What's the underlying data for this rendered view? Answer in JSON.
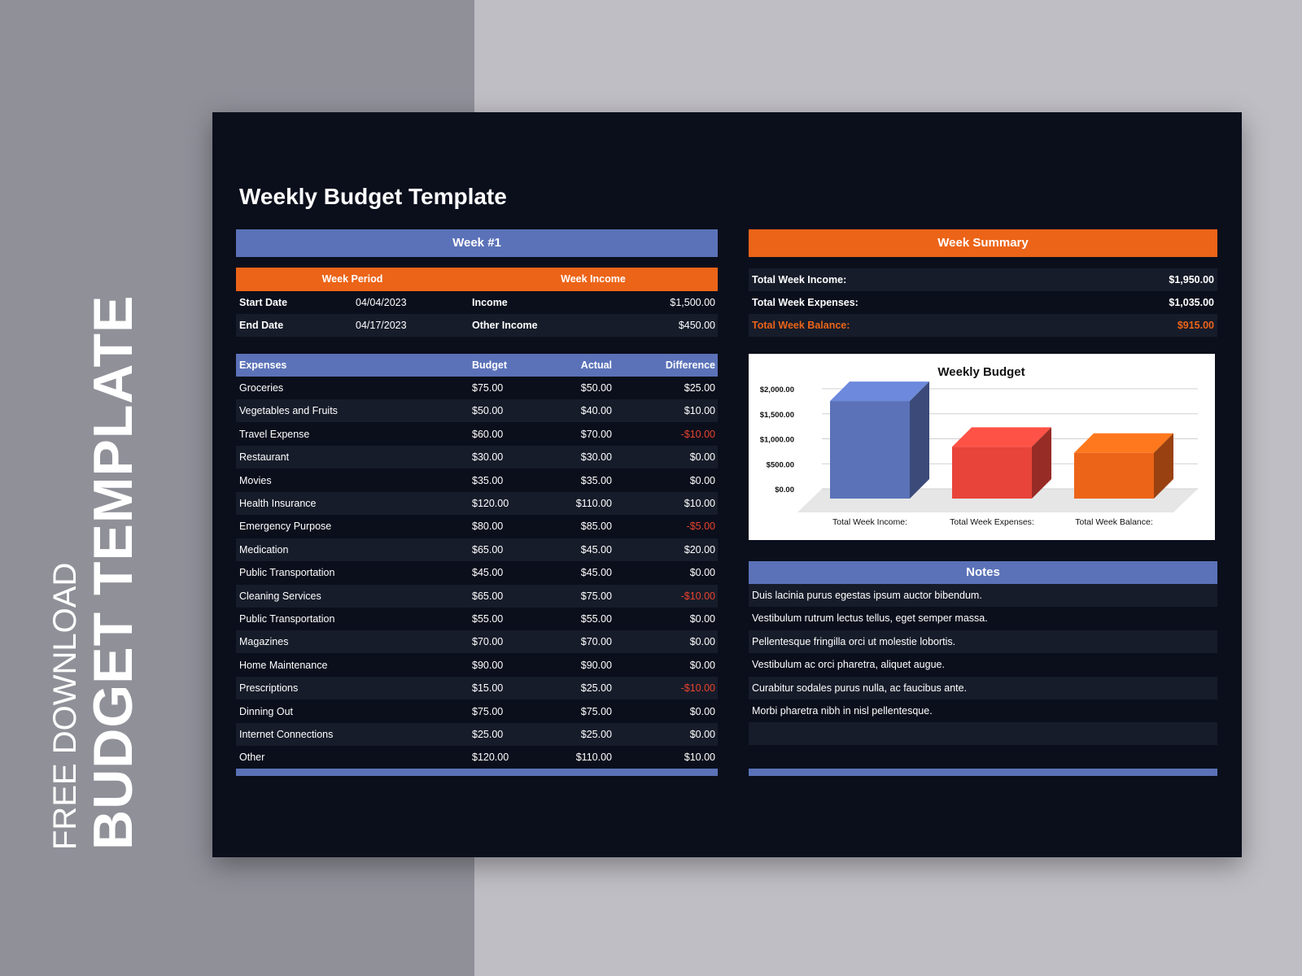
{
  "side": {
    "free_download": "FREE DOWNLOAD",
    "budget_template": "BUDGET TEMPLATE"
  },
  "title": "Weekly Budget Template",
  "week": {
    "header": "Week #1",
    "period_label": "Week Period",
    "income_label": "Week Income",
    "start_label": "Start Date",
    "start_value": "04/04/2023",
    "end_label": "End Date",
    "end_value": "04/17/2023",
    "income_row_label": "Income",
    "income_value": "$1,500.00",
    "other_income_label": "Other Income",
    "other_income_value": "$450.00"
  },
  "expenses": {
    "columns": [
      "Expenses",
      "Budget",
      "Actual",
      "Difference"
    ],
    "rows": [
      {
        "name": "Groceries",
        "budget": "$75.00",
        "actual": "$50.00",
        "diff": "$25.00",
        "neg": false
      },
      {
        "name": "Vegetables and Fruits",
        "budget": "$50.00",
        "actual": "$40.00",
        "diff": "$10.00",
        "neg": false
      },
      {
        "name": "Travel Expense",
        "budget": "$60.00",
        "actual": "$70.00",
        "diff": "-$10.00",
        "neg": true
      },
      {
        "name": "Restaurant",
        "budget": "$30.00",
        "actual": "$30.00",
        "diff": "$0.00",
        "neg": false
      },
      {
        "name": "Movies",
        "budget": "$35.00",
        "actual": "$35.00",
        "diff": "$0.00",
        "neg": false
      },
      {
        "name": "Health Insurance",
        "budget": "$120.00",
        "actual": "$110.00",
        "diff": "$10.00",
        "neg": false
      },
      {
        "name": "Emergency Purpose",
        "budget": "$80.00",
        "actual": "$85.00",
        "diff": "-$5.00",
        "neg": true
      },
      {
        "name": "Medication",
        "budget": "$65.00",
        "actual": "$45.00",
        "diff": "$20.00",
        "neg": false
      },
      {
        "name": "Public Transportation",
        "budget": "$45.00",
        "actual": "$45.00",
        "diff": "$0.00",
        "neg": false
      },
      {
        "name": "Cleaning Services",
        "budget": "$65.00",
        "actual": "$75.00",
        "diff": "-$10.00",
        "neg": true
      },
      {
        "name": "Public Transportation",
        "budget": "$55.00",
        "actual": "$55.00",
        "diff": "$0.00",
        "neg": false
      },
      {
        "name": "Magazines",
        "budget": "$70.00",
        "actual": "$70.00",
        "diff": "$0.00",
        "neg": false
      },
      {
        "name": "Home Maintenance",
        "budget": "$90.00",
        "actual": "$90.00",
        "diff": "$0.00",
        "neg": false
      },
      {
        "name": "Prescriptions",
        "budget": "$15.00",
        "actual": "$25.00",
        "diff": "-$10.00",
        "neg": true
      },
      {
        "name": "Dinning Out",
        "budget": "$75.00",
        "actual": "$75.00",
        "diff": "$0.00",
        "neg": false
      },
      {
        "name": "Internet Connections",
        "budget": "$25.00",
        "actual": "$25.00",
        "diff": "$0.00",
        "neg": false
      },
      {
        "name": "Other",
        "budget": "$120.00",
        "actual": "$110.00",
        "diff": "$10.00",
        "neg": false
      }
    ]
  },
  "summary": {
    "header": "Week Summary",
    "income_label": "Total Week Income:",
    "income_value": "$1,950.00",
    "expenses_label": "Total Week Expenses:",
    "expenses_value": "$1,035.00",
    "balance_label": "Total Week Balance:",
    "balance_value": "$915.00"
  },
  "chart_data": {
    "type": "bar",
    "title": "Weekly Budget",
    "categories": [
      "Total Week Income:",
      "Total Week Expenses:",
      "Total Week Balance:"
    ],
    "values": [
      1950,
      1035,
      915
    ],
    "colors": [
      "#5b72b8",
      "#e8443a",
      "#ec6418"
    ],
    "yticks": [
      "$2,000.00",
      "$1,500.00",
      "$1,000.00",
      "$500.00",
      "$0.00"
    ],
    "ylim": [
      0,
      2000
    ],
    "grid": true
  },
  "notes": {
    "header": "Notes",
    "items": [
      "Duis lacinia purus egestas ipsum auctor bibendum.",
      "Vestibulum rutrum lectus tellus, eget semper massa.",
      "Pellentesque fringilla orci ut molestie lobortis.",
      "Vestibulum ac orci pharetra, aliquet augue.",
      "Curabitur sodales purus nulla, ac faucibus ante.",
      "Morbi pharetra nibh in nisl pellentesque.",
      ""
    ]
  },
  "colors": {
    "blue": "#5b72b8",
    "orange": "#ec6418",
    "dark": "#0b0f1c",
    "negative": "#e8442e"
  }
}
